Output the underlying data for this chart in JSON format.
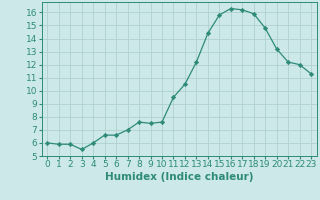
{
  "x": [
    0,
    1,
    2,
    3,
    4,
    5,
    6,
    7,
    8,
    9,
    10,
    11,
    12,
    13,
    14,
    15,
    16,
    17,
    18,
    19,
    20,
    21,
    22,
    23
  ],
  "y": [
    6.0,
    5.9,
    5.9,
    5.5,
    6.0,
    6.6,
    6.6,
    7.0,
    7.6,
    7.5,
    7.6,
    9.5,
    10.5,
    12.2,
    14.4,
    15.8,
    16.3,
    16.2,
    15.9,
    14.8,
    13.2,
    12.2,
    12.0,
    11.3
  ],
  "xlabel": "Humidex (Indice chaleur)",
  "xlim": [
    -0.5,
    23.5
  ],
  "ylim": [
    5,
    16.8
  ],
  "yticks": [
    5,
    6,
    7,
    8,
    9,
    10,
    11,
    12,
    13,
    14,
    15,
    16
  ],
  "xticks": [
    0,
    1,
    2,
    3,
    4,
    5,
    6,
    7,
    8,
    9,
    10,
    11,
    12,
    13,
    14,
    15,
    16,
    17,
    18,
    19,
    20,
    21,
    22,
    23
  ],
  "line_color": "#2e8b7a",
  "marker": "D",
  "marker_size": 2.2,
  "bg_color": "#cce8e8",
  "grid_color": "#b0d0d0",
  "tick_color": "#2e8b7a",
  "label_color": "#2e8b7a",
  "font_size": 6.5,
  "xlabel_fontsize": 7.5
}
